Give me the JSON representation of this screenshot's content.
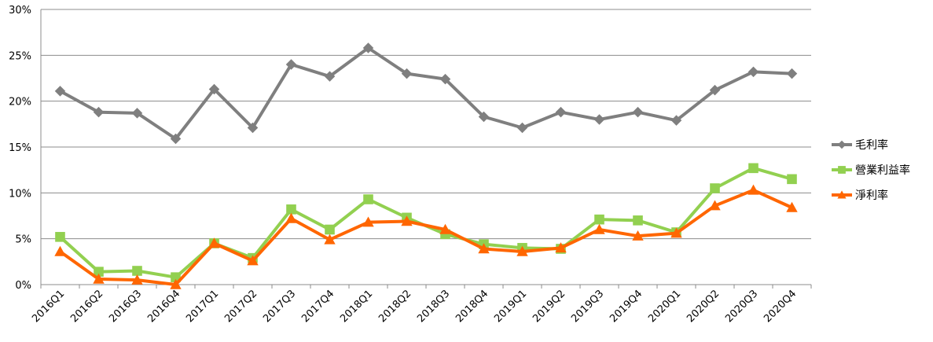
{
  "chart_data": {
    "type": "line",
    "categories": [
      "2016Q1",
      "2016Q2",
      "2016Q3",
      "2016Q4",
      "2017Q1",
      "2017Q2",
      "2017Q3",
      "2017Q4",
      "2018Q1",
      "2018Q2",
      "2018Q3",
      "2018Q4",
      "2019Q1",
      "2019Q2",
      "2019Q3",
      "2019Q4",
      "2020Q1",
      "2020Q2",
      "2020Q3",
      "2020Q4"
    ],
    "y_ticks": [
      "0%",
      "5%",
      "10%",
      "15%",
      "20%",
      "25%",
      "30%"
    ],
    "ylim": [
      0,
      30
    ],
    "grid": true,
    "legend_position": "right",
    "series": [
      {
        "name": "毛利率",
        "color": "#7f7f7f",
        "marker": "diamond",
        "values": [
          21.1,
          18.8,
          18.7,
          15.9,
          21.3,
          17.1,
          24.0,
          22.7,
          25.8,
          23.0,
          22.4,
          18.3,
          17.1,
          18.8,
          18.0,
          18.8,
          17.9,
          21.2,
          23.2,
          23.0
        ]
      },
      {
        "name": "營業利益率",
        "color": "#92d050",
        "marker": "square",
        "values": [
          5.2,
          1.4,
          1.5,
          0.8,
          4.5,
          2.9,
          8.2,
          6.0,
          9.3,
          7.3,
          5.5,
          4.4,
          4.0,
          3.9,
          7.1,
          7.0,
          5.7,
          10.5,
          12.7,
          11.5
        ]
      },
      {
        "name": "淨利率",
        "color": "#ff6600",
        "marker": "triangle",
        "values": [
          3.6,
          0.6,
          0.5,
          0.0,
          4.5,
          2.6,
          7.2,
          4.9,
          6.8,
          6.9,
          6.0,
          3.9,
          3.6,
          4.0,
          6.0,
          5.3,
          5.6,
          8.6,
          10.3,
          8.4
        ]
      }
    ]
  }
}
